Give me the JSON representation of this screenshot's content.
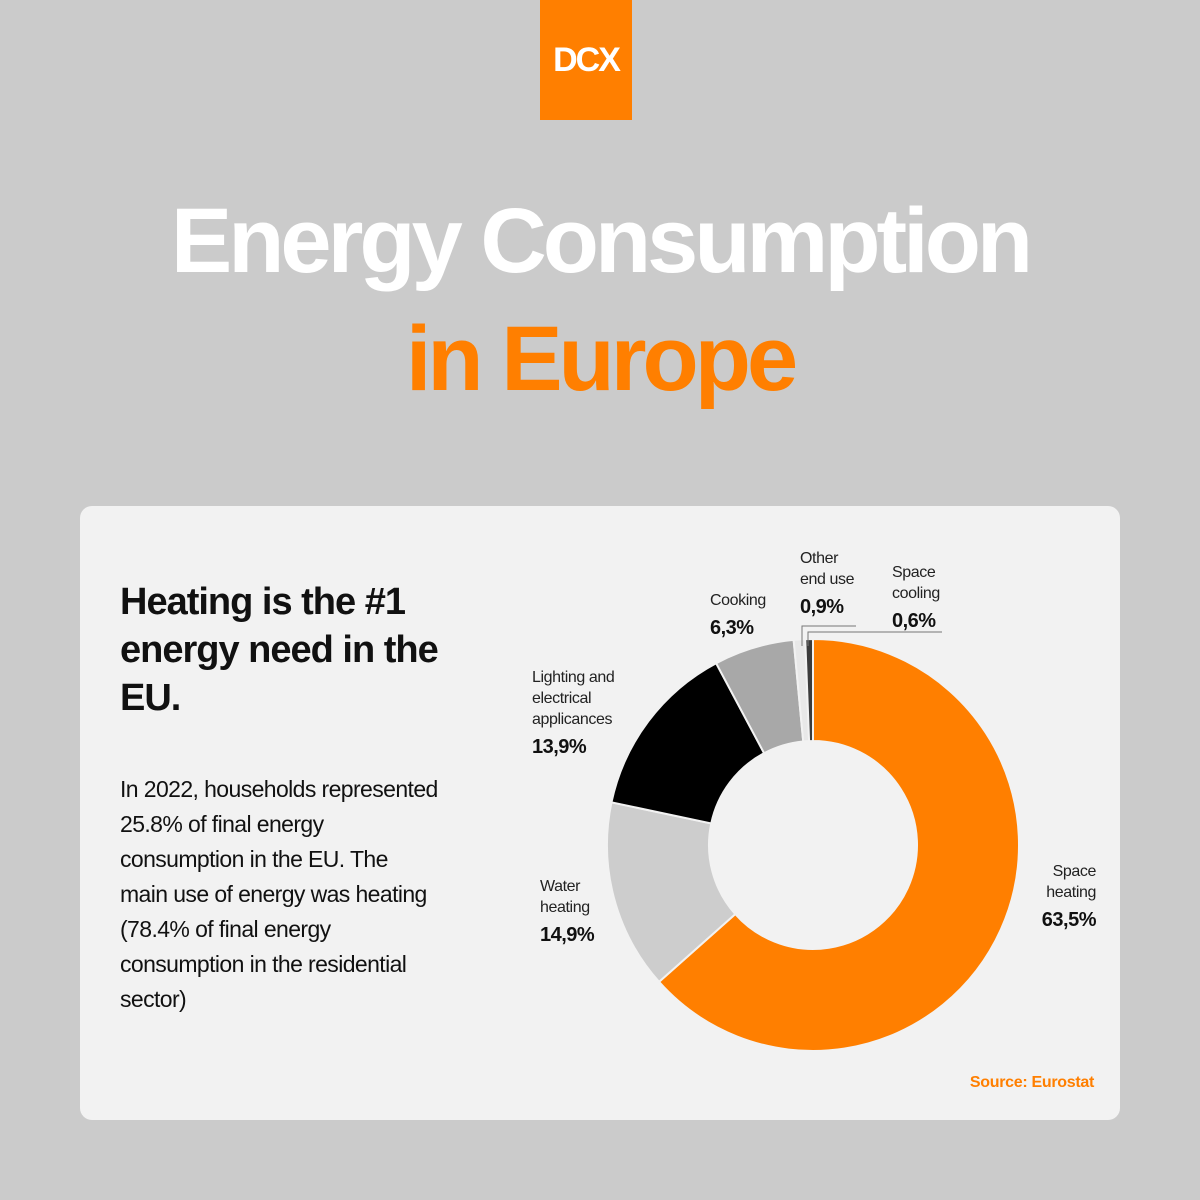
{
  "logo": {
    "text": "DCX"
  },
  "title": {
    "line1": "Energy Consumption",
    "line2": "in Europe"
  },
  "card": {
    "headline": "Heating is the #1 energy need in the EU.",
    "body": "In 2022, households represented 25.8% of final energy consumption in the EU. The main use of energy was heating (78.4% of final energy consumption in the residential sector)",
    "source": "Source: Eurostat"
  },
  "colors": {
    "accent": "#ff7f00",
    "background": "#cbcbcb",
    "card": "#f2f2f2"
  },
  "chart_data": {
    "type": "pie",
    "subtype": "donut",
    "start_angle_deg": 0,
    "direction": "clockwise",
    "series": [
      {
        "name": "Space heating",
        "name_lines": [
          "Space",
          "heating"
        ],
        "value": 63.5,
        "label": "63,5%",
        "color": "#ff7f00"
      },
      {
        "name": "Water heating",
        "name_lines": [
          "Water",
          "heating"
        ],
        "value": 14.9,
        "label": "14,9%",
        "color": "#cdcdcd"
      },
      {
        "name": "Lighting and electrical applicances",
        "name_lines": [
          "Lighting and",
          "electrical",
          "applicances"
        ],
        "value": 13.9,
        "label": "13,9%",
        "color": "#000000"
      },
      {
        "name": "Cooking",
        "name_lines": [
          "Cooking"
        ],
        "value": 6.3,
        "label": "6,3%",
        "color": "#a8a8a8"
      },
      {
        "name": "Other end use",
        "name_lines": [
          "Other",
          "end use"
        ],
        "value": 0.9,
        "label": "0,9%",
        "color": "#e8e8e8"
      },
      {
        "name": "Space cooling",
        "name_lines": [
          "Space",
          "cooling"
        ],
        "value": 0.6,
        "label": "0,6%",
        "color": "#3b3b3b"
      }
    ]
  }
}
